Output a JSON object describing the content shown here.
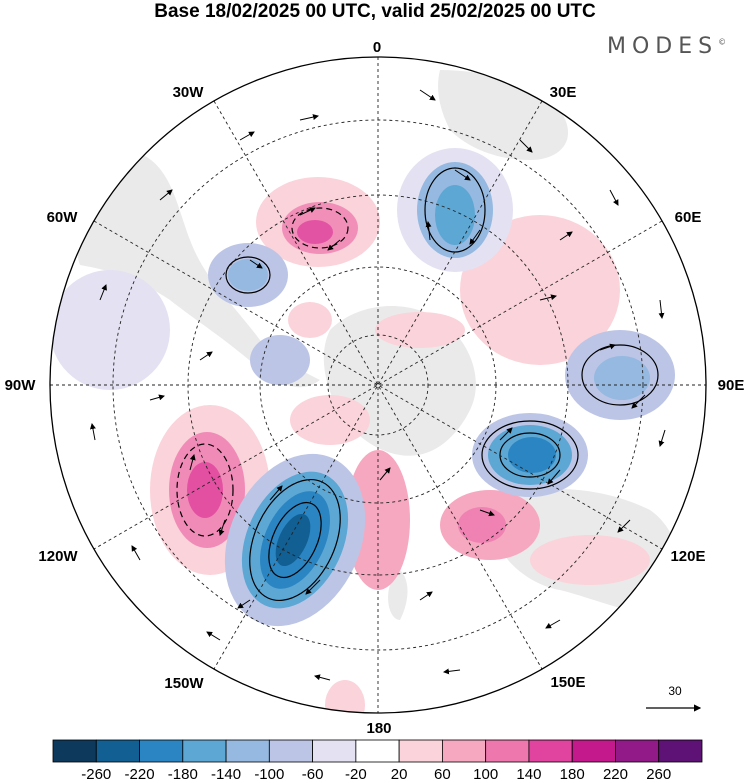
{
  "title": "Base 18/02/2025 00 UTC, valid 25/02/2025 00 UTC",
  "brand": {
    "name": "MODES",
    "mark": "©"
  },
  "map": {
    "projection": "south polar stereographic",
    "longitude_labels": [
      "0",
      "30E",
      "60E",
      "90E",
      "120E",
      "150E",
      "180",
      "150W",
      "120W",
      "90W",
      "60W",
      "30W"
    ],
    "field_colors": {
      "positive": "#f3b6c8",
      "positive_strong": "#e0509a",
      "negative": "#b9c3e2",
      "negative_strong": "#2f7fb8",
      "land": "#d9d9d9"
    }
  },
  "vector_key": {
    "value": "30"
  },
  "colorbar": {
    "labels": [
      "-260",
      "-220",
      "-180",
      "-140",
      "-100",
      "-60",
      "-20",
      "20",
      "60",
      "100",
      "140",
      "180",
      "220",
      "260"
    ],
    "colors": [
      "#0d3a5c",
      "#115f93",
      "#2a85c2",
      "#5da7d4",
      "#95b9e0",
      "#bcc5e6",
      "#e4e2f2",
      "#ffffff",
      "#fbd3da",
      "#f6a8c0",
      "#ee78ae",
      "#e0449e",
      "#c4188d",
      "#921a88",
      "#5e1276"
    ]
  }
}
